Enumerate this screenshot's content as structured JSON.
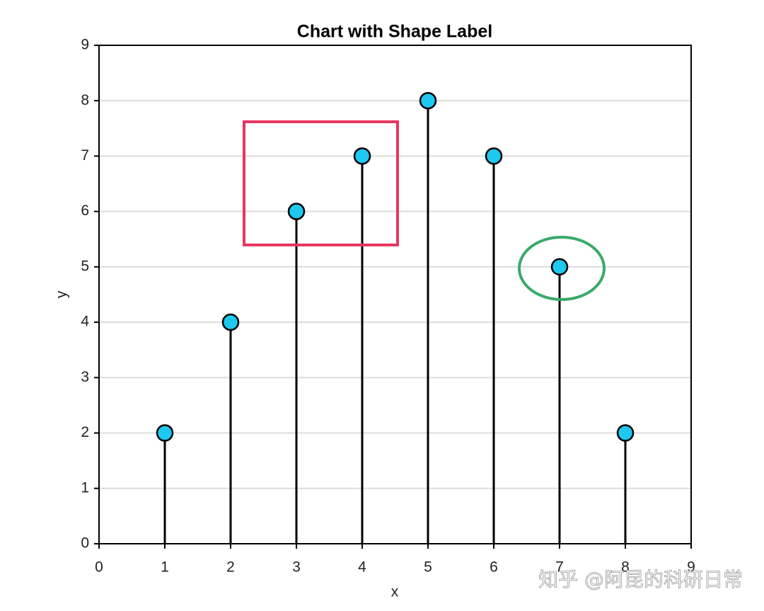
{
  "chart_data": {
    "type": "stem",
    "title": "Chart with Shape Label",
    "xlabel": "x",
    "ylabel": "y",
    "x": [
      1,
      2,
      3,
      4,
      5,
      6,
      7,
      8
    ],
    "values": [
      2,
      4,
      6,
      7,
      8,
      7,
      5,
      2
    ],
    "color": "#1ec8f0",
    "stem_color": "#000000",
    "xlim": [
      0,
      9
    ],
    "xticks": [
      0,
      1,
      2,
      3,
      4,
      5,
      6,
      7,
      8,
      9
    ],
    "ylim": [
      0,
      9
    ],
    "yticks": [
      0,
      1,
      2,
      3,
      4,
      5,
      6,
      7,
      8,
      9
    ],
    "grid": true,
    "watermark": "知乎 @阿昆的科研日常"
  }
}
